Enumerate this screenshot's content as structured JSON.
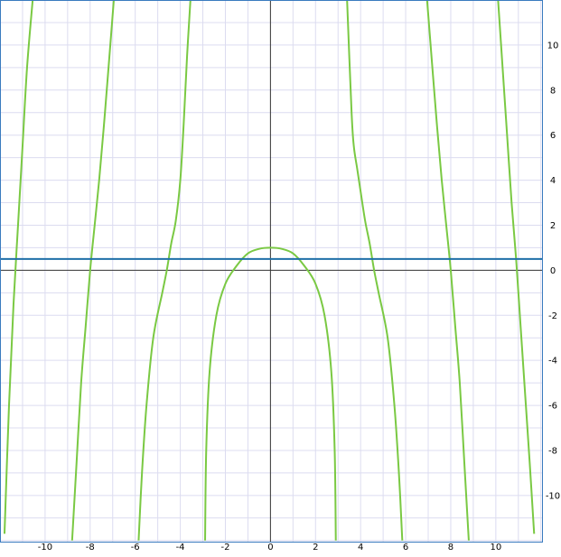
{
  "chart_data": {
    "type": "line",
    "title": "",
    "xlabel": "",
    "ylabel": "",
    "xlim": [
      -12,
      12.05
    ],
    "ylim": [
      -12.05,
      12
    ],
    "grid": true,
    "x_ticks": [
      -10,
      -8,
      -6,
      -4,
      -2,
      0,
      2,
      4,
      6,
      8,
      10
    ],
    "y_ticks": [
      10,
      8,
      6,
      4,
      2,
      0,
      -2,
      -4,
      -6,
      -8,
      -10
    ],
    "y_tick_side": "right",
    "series": [
      {
        "style": "curve",
        "color": "#7ac943",
        "branches": [
          {
            "x": [
              -11.8,
              -11.6,
              -11.4,
              -11.2,
              -11.0,
              -10.8,
              -10.55
            ],
            "y": [
              -11.7,
              -6.0,
              -1.5,
              2.0,
              5.5,
              9.0,
              12.0
            ]
          },
          {
            "x": [
              -8.8,
              -8.6,
              -8.4,
              -8.2,
              -8.0,
              -7.8,
              -7.6,
              -7.4,
              -7.2,
              -6.95
            ],
            "y": [
              -12.0,
              -8.5,
              -5.0,
              -2.5,
              0.0,
              2.0,
              4.0,
              6.3,
              8.8,
              12.0
            ]
          },
          {
            "x": [
              -5.85,
              -5.7,
              -5.5,
              -5.2,
              -4.8,
              -4.6,
              -4.4,
              -4.2,
              -4.0,
              -3.85,
              -3.7,
              -3.55
            ],
            "y": [
              -12.0,
              -9.0,
              -6.0,
              -3.0,
              -1.0,
              0.0,
              1.2,
              2.2,
              4.0,
              6.5,
              9.5,
              12.0
            ]
          },
          {
            "x": [
              -2.9,
              -2.85,
              -2.7,
              -2.4,
              -2.0,
              -1.5,
              -1.0,
              -0.5,
              0.0,
              0.5,
              1.0,
              1.5,
              2.0,
              2.4,
              2.7,
              2.85,
              2.9
            ],
            "y": [
              -12.0,
              -8.0,
              -4.5,
              -2.0,
              -0.6,
              0.2,
              0.75,
              0.95,
              1.0,
              0.95,
              0.75,
              0.2,
              -0.6,
              -2.0,
              -4.5,
              -8.0,
              -12.0
            ]
          },
          {
            "x": [
              3.4,
              3.6,
              3.7,
              3.85,
              4.0,
              4.2,
              4.4,
              4.6,
              4.8,
              5.2,
              5.5,
              5.7,
              5.85
            ],
            "y": [
              12.0,
              7.0,
              5.5,
              4.5,
              3.5,
              2.2,
              1.2,
              0.0,
              -1.0,
              -3.0,
              -6.0,
              -9.0,
              -12.0
            ]
          },
          {
            "x": [
              6.95,
              7.2,
              7.4,
              7.6,
              7.8,
              8.0,
              8.2,
              8.4,
              8.6,
              8.8
            ],
            "y": [
              12.0,
              8.8,
              6.3,
              4.0,
              2.0,
              0.0,
              -2.5,
              -5.0,
              -8.5,
              -12.0
            ]
          },
          {
            "x": [
              10.1,
              10.3,
              10.5,
              10.7,
              10.9,
              11.1,
              11.3,
              11.5,
              11.7
            ],
            "y": [
              12.0,
              9.0,
              6.0,
              3.0,
              0.5,
              -2.5,
              -5.5,
              -8.5,
              -11.7
            ]
          }
        ]
      },
      {
        "style": "horizontal-line",
        "color": "#1f6fa8",
        "y": 0.5
      }
    ],
    "colors": {
      "grid": "#dcdcf0",
      "axis": "#333333",
      "frame": "#3a7bbf",
      "tick_label": "#000000"
    }
  }
}
